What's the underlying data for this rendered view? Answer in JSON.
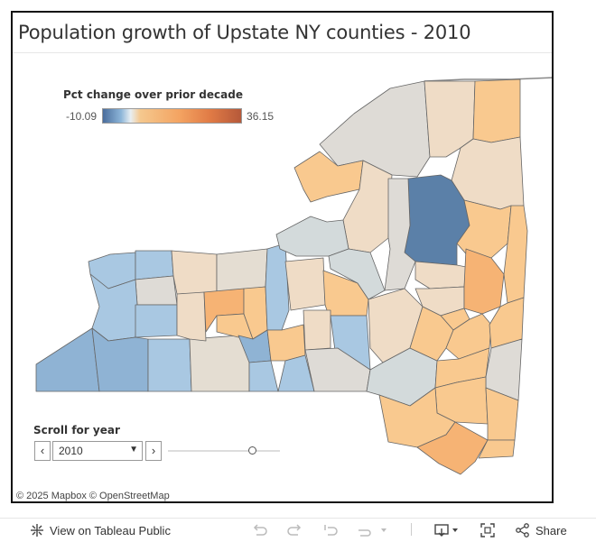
{
  "title": "Population growth of Upstate NY counties - 2010",
  "legend": {
    "title": "Pct change over prior decade",
    "min_label": "-10.09",
    "max_label": "36.15",
    "colors": [
      "#4a6d9c",
      "#8cb5d8",
      "#e8eef2",
      "#f5c88e",
      "#f4a462",
      "#e07a45",
      "#b5593a"
    ]
  },
  "map_colors": {
    "neutral": "#dedbd6",
    "light_tan": "#efdcc6",
    "blue_dark": "#5b80a8",
    "blue_mid": "#8fb3d4",
    "blue_light": "#a9c8e2",
    "orange_light": "#f9c98f",
    "orange_mid": "#f6b374",
    "gray_blue": "#d3dadb",
    "coast_border": "#888888"
  },
  "controls": {
    "scroll_label": "Scroll for year",
    "year_value": "2010",
    "prev_icon": "chevron-left-icon",
    "next_icon": "chevron-right-icon",
    "slider_position": 0.77
  },
  "attribution": "© 2025 Mapbox  © OpenStreetMap",
  "toolbar": {
    "view_label": "View on Tableau Public",
    "share_label": "Share"
  }
}
